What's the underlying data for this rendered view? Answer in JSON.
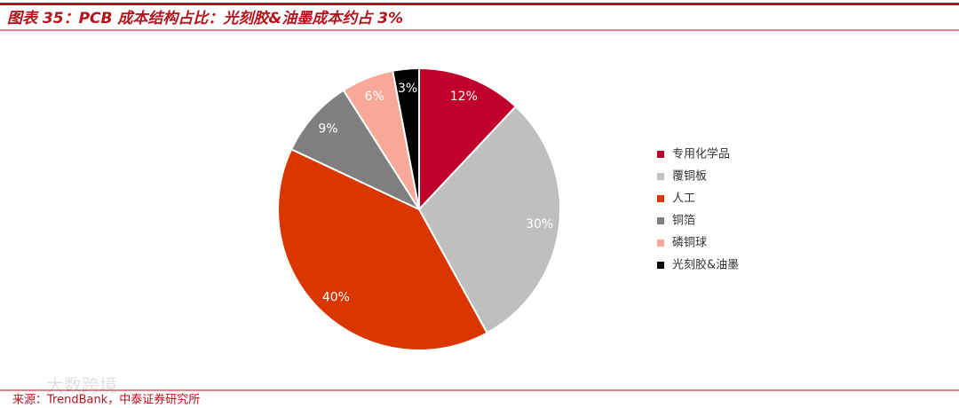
{
  "chart_data": {
    "type": "pie",
    "title": "图表 35：PCB 成本结构占比：光刻胶&油墨成本约占 3%",
    "categories": [
      "专用化学品",
      "覆铜板",
      "人工",
      "铜箔",
      "磷铜球",
      "光刻胶&油墨"
    ],
    "values": [
      12,
      30,
      40,
      9,
      6,
      3
    ],
    "value_labels": [
      "12%",
      "30%",
      "40%",
      "9%",
      "6%",
      "3%"
    ],
    "colors": [
      "#c0002a",
      "#bfbfbf",
      "#d93600",
      "#7f7f7f",
      "#f7a898",
      "#000000"
    ],
    "label_colors": [
      "#ffffff",
      "#ffffff",
      "#ffffff",
      "#ffffff",
      "#ffffff",
      "#ffffff"
    ],
    "legend": "right",
    "source": "来源：TrendBank，中泰证券研究所",
    "watermark": "大数跨境"
  }
}
